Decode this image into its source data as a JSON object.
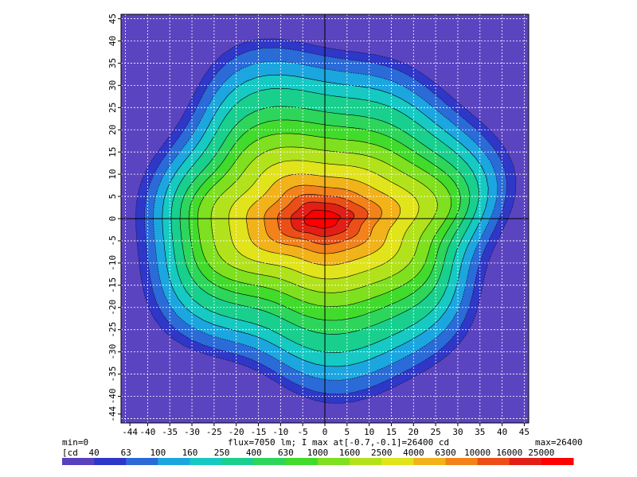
{
  "chart_data": {
    "type": "heatmap",
    "title": "",
    "xlabel": "",
    "ylabel": "",
    "xlim": [
      -46,
      46
    ],
    "ylim": [
      -46,
      46
    ],
    "x_tick_labels": [
      "-44",
      "-40",
      "-35",
      "-30",
      "-25",
      "-20",
      "-15",
      "-10",
      "-5",
      "0",
      "5",
      "10",
      "15",
      "20",
      "25",
      "30",
      "35",
      "40",
      "45"
    ],
    "x_tick_values": [
      -44,
      -40,
      -35,
      -30,
      -25,
      -20,
      -15,
      -10,
      -5,
      0,
      5,
      10,
      15,
      20,
      25,
      30,
      35,
      40,
      45
    ],
    "y_tick_labels": [
      "-44",
      "-40",
      "-35",
      "-30",
      "-25",
      "-20",
      "-15",
      "-10",
      "-5",
      "0",
      "5",
      "10",
      "15",
      "20",
      "25",
      "30",
      "35",
      "40",
      "45"
    ],
    "y_tick_values": [
      -44,
      -40,
      -35,
      -30,
      -25,
      -20,
      -15,
      -10,
      -5,
      0,
      5,
      10,
      15,
      20,
      25,
      30,
      35,
      40,
      45
    ],
    "grid": true,
    "peak": {
      "x": -0.7,
      "y": -0.1,
      "value": 26400
    },
    "min_label": "min=0",
    "max_label": "max=26400",
    "info_label": "flux=7050 lm; I max at[-0.7,-0.1]=26400 cd",
    "unit_label": "[cd",
    "legend": {
      "position": "bottom",
      "labels": [
        "40",
        "63",
        "100",
        "160",
        "250",
        "400",
        "630",
        "1000",
        "1600",
        "2500",
        "4000",
        "6300",
        "10000",
        "16000",
        "25000"
      ],
      "values": [
        40,
        63,
        100,
        160,
        250,
        400,
        630,
        1000,
        1600,
        2500,
        4000,
        6300,
        10000,
        16000,
        25000
      ]
    },
    "colormap": [
      "#5a3fbf",
      "#2f37c8",
      "#2a6bd8",
      "#1ca6e0",
      "#16c9c3",
      "#19cf8e",
      "#2dd65a",
      "#41db2c",
      "#7ee01e",
      "#b2e21b",
      "#e1e31b",
      "#f2b21a",
      "#f28219",
      "#ec4e18",
      "#e11f16",
      "#ff0000"
    ],
    "background_color": "#5b44c0"
  }
}
